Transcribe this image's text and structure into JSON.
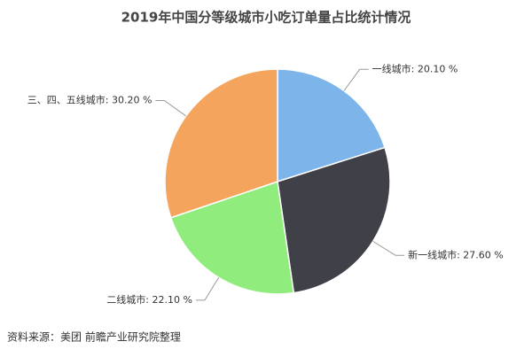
{
  "chart_data": {
    "type": "pie",
    "title": "2019年中国分等级城市小吃订单量占比统计情况",
    "values": [
      20.1,
      27.6,
      22.1,
      30.2
    ],
    "value_labels": [
      "一线城市: 20.10 %",
      "新一线城市: 27.60 %",
      "二线城市: 22.10 %",
      "三、四、五线城市: 30.20 %"
    ],
    "colors": [
      "#7db4ea",
      "#404048",
      "#90ec7d",
      "#f4a45d"
    ],
    "source": "资料来源：美团 前瞻产业研究院整理"
  }
}
